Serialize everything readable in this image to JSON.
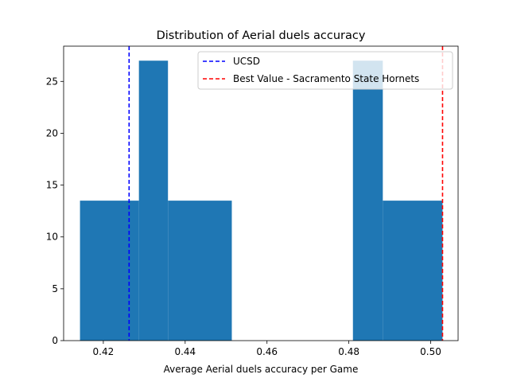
{
  "chart_data": {
    "type": "bar",
    "title": "Distribution of Aerial duels accuracy",
    "xlabel": "Average Aerial duels accuracy per Game",
    "ylabel": "",
    "xlim": [
      0.4103,
      0.5067
    ],
    "ylim": [
      0,
      28.4
    ],
    "xticks": [
      0.42,
      0.44,
      0.46,
      0.48,
      0.5
    ],
    "xtick_labels": [
      "0.42",
      "0.44",
      "0.46",
      "0.48",
      "0.50"
    ],
    "yticks": [
      0,
      5,
      10,
      15,
      20,
      25
    ],
    "ytick_labels": [
      "0",
      "5",
      "10",
      "15",
      "20",
      "25"
    ],
    "grid": false,
    "bar_color": "#1f77b4",
    "bins": [
      {
        "x0": 0.4143,
        "x1": 0.4287,
        "value": 13.5
      },
      {
        "x0": 0.4287,
        "x1": 0.4358,
        "value": 27.0
      },
      {
        "x0": 0.4358,
        "x1": 0.4514,
        "value": 13.5
      },
      {
        "x0": 0.481,
        "x1": 0.4883,
        "value": 27.0
      },
      {
        "x0": 0.4883,
        "x1": 0.5029,
        "value": 13.5
      }
    ],
    "vlines": [
      {
        "name": "UCSD",
        "x": 0.4263,
        "color": "#0000ff",
        "style": "dashed"
      },
      {
        "name": "Best Value - Sacramento State Hornets",
        "x": 0.5029,
        "color": "#ff0000",
        "style": "dashed"
      }
    ],
    "legend_position": "top-right"
  }
}
